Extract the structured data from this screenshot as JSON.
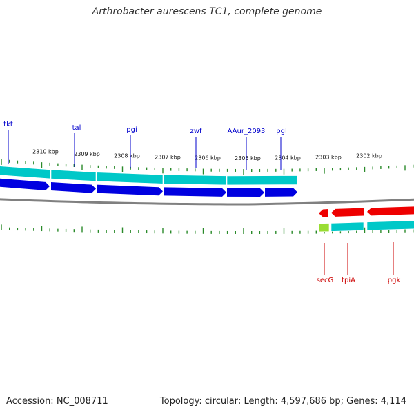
{
  "title": "Arthrobacter aurescens TC1, complete genome",
  "footer": {
    "accession": "Accession: NC_008711",
    "topology": "Topology: circular; Length: 4,597,686 bp; Genes: 4,114"
  },
  "colors": {
    "forward_gene": "#0000e0",
    "forward_cds": "#00c8c8",
    "reverse_gene": "#ee0000",
    "reverse_cds": "#00c8c8",
    "reverse_small": "#99dd33",
    "backbone": "#808080",
    "ticks": "#2a8a2a",
    "forward_label": "#0000cc",
    "reverse_label": "#cc0000"
  },
  "scale_labels": [
    "2310 kbp",
    "2309 kbp",
    "2308 kbp",
    "2307 kbp",
    "2306 kbp",
    "2305 kbp",
    "2304 kbp",
    "2303 kbp",
    "2302 kbp"
  ],
  "forward_genes": [
    "tkt",
    "tal",
    "pgi",
    "zwf",
    "AAur_2093",
    "pgl"
  ],
  "reverse_genes": [
    "secG",
    "tpiA",
    "pgk"
  ]
}
